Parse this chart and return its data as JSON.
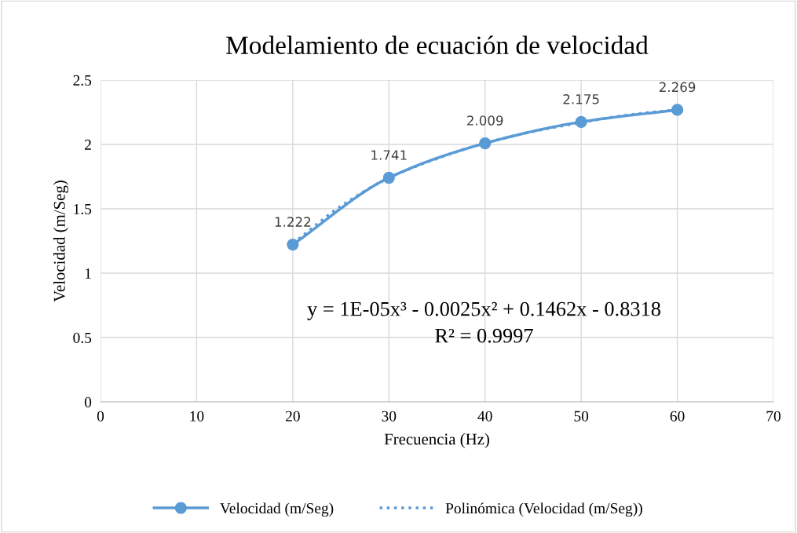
{
  "chart_data": {
    "type": "line",
    "title": "Modelamiento de ecuación de velocidad",
    "xlabel": "Frecuencia (Hz)",
    "ylabel": "Velocidad (m/Seg)",
    "xlim": [
      0,
      70
    ],
    "xticks": [
      0,
      10,
      20,
      30,
      40,
      50,
      60,
      70
    ],
    "ylim": [
      0,
      2.5
    ],
    "yticks": [
      0,
      0.5,
      1,
      1.5,
      2,
      2.5
    ],
    "grid": true,
    "legend": "bottom",
    "series": [
      {
        "name": "Velocidad (m/Seg)",
        "color": "#5b9bd5",
        "marker": "circle",
        "line_style": "solid",
        "x": [
          20,
          30,
          40,
          50,
          60
        ],
        "values": [
          1.222,
          1.741,
          2.009,
          2.175,
          2.269
        ],
        "value_labels": [
          "1.222",
          "1.741",
          "2.009",
          "2.175",
          "2.269"
        ]
      },
      {
        "name": "Polinómica (Velocidad (m/Seg))",
        "color": "#5b9bd5",
        "marker": "none",
        "line_style": "dotted",
        "x": [
          20,
          25,
          30,
          35,
          40,
          45,
          50,
          55,
          60
        ],
        "values": [
          1.23,
          1.52,
          1.74,
          1.89,
          2.01,
          2.1,
          2.17,
          2.23,
          2.27
        ]
      }
    ],
    "annotations": [
      "y = 1E-05x³ - 0.0025x² + 0.1462x - 0.8318",
      "R² = 0.9997"
    ]
  }
}
